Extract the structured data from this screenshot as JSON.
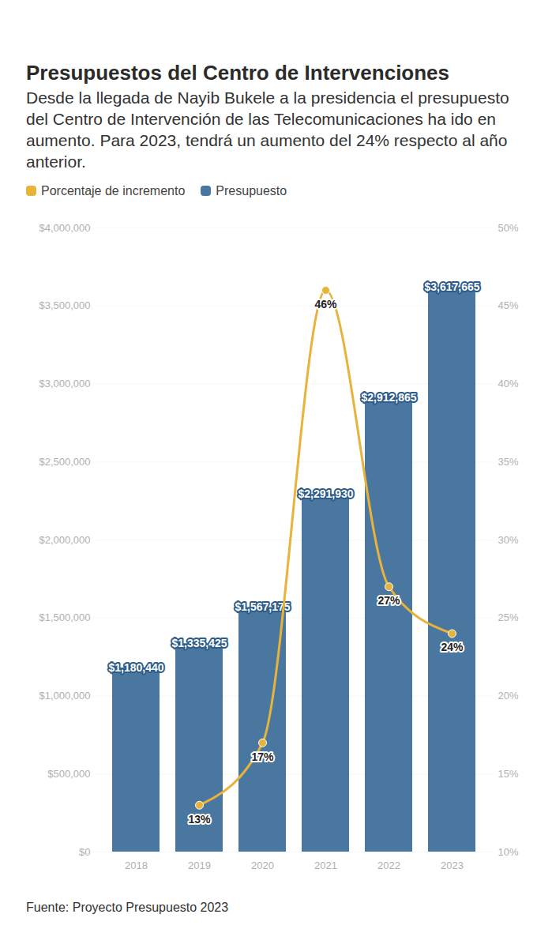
{
  "chart_data": {
    "type": "bar",
    "title": "Presupuestos del Centro de Intervenciones",
    "subtitle": "Desde la llegada de Nayib Bukele a la presidencia el presupuesto del Centro de Intervención de las Telecomunicaciones ha ido en aumento. Para 2023, tendrá un aumento del 24% respecto al año anterior.",
    "source": "Fuente: Proyecto Presupuesto 2023",
    "categories": [
      "2018",
      "2019",
      "2020",
      "2021",
      "2022",
      "2023"
    ],
    "series": [
      {
        "name": "Porcentaje de incremento",
        "type": "line",
        "axis": "y2",
        "color": "#e8b33a",
        "marker": "circle",
        "values": [
          null,
          13,
          17,
          46,
          27,
          24
        ],
        "value_labels": [
          null,
          "13%",
          "17%",
          "46%",
          "27%",
          "24%"
        ]
      },
      {
        "name": "Presupuesto",
        "type": "bar",
        "color": "#4a77a0",
        "values": [
          1180440,
          1335425,
          1567175,
          2291930,
          2912865,
          3617665
        ],
        "value_labels": [
          "$1,180,440",
          "$1,335,425",
          "$1,567,175",
          "$2,291,930",
          "$2,912,865",
          "$3,617,665"
        ]
      }
    ],
    "ylim": [
      0,
      4000000
    ],
    "yticks": [
      {
        "value": 0,
        "label": "$0"
      },
      {
        "value": 500000,
        "label": "$500,000"
      },
      {
        "value": 1000000,
        "label": "$1,000,000"
      },
      {
        "value": 1500000,
        "label": "$1,500,000"
      },
      {
        "value": 2000000,
        "label": "$2,000,000"
      },
      {
        "value": 2500000,
        "label": "$2,500,000"
      },
      {
        "value": 3000000,
        "label": "$3,000,000"
      },
      {
        "value": 3500000,
        "label": "$3,500,000"
      },
      {
        "value": 4000000,
        "label": "$4,000,000"
      }
    ],
    "y2lim": [
      10,
      50
    ],
    "y2ticks": [
      {
        "value": 10,
        "label": "10%"
      },
      {
        "value": 15,
        "label": "15%"
      },
      {
        "value": 20,
        "label": "20%"
      },
      {
        "value": 25,
        "label": "25%"
      },
      {
        "value": 30,
        "label": "30%"
      },
      {
        "value": 35,
        "label": "35%"
      },
      {
        "value": 40,
        "label": "40%"
      },
      {
        "value": 45,
        "label": "45%"
      },
      {
        "value": 50,
        "label": "50%"
      }
    ],
    "grid": true,
    "data_labels": true,
    "legend": "top-left"
  }
}
